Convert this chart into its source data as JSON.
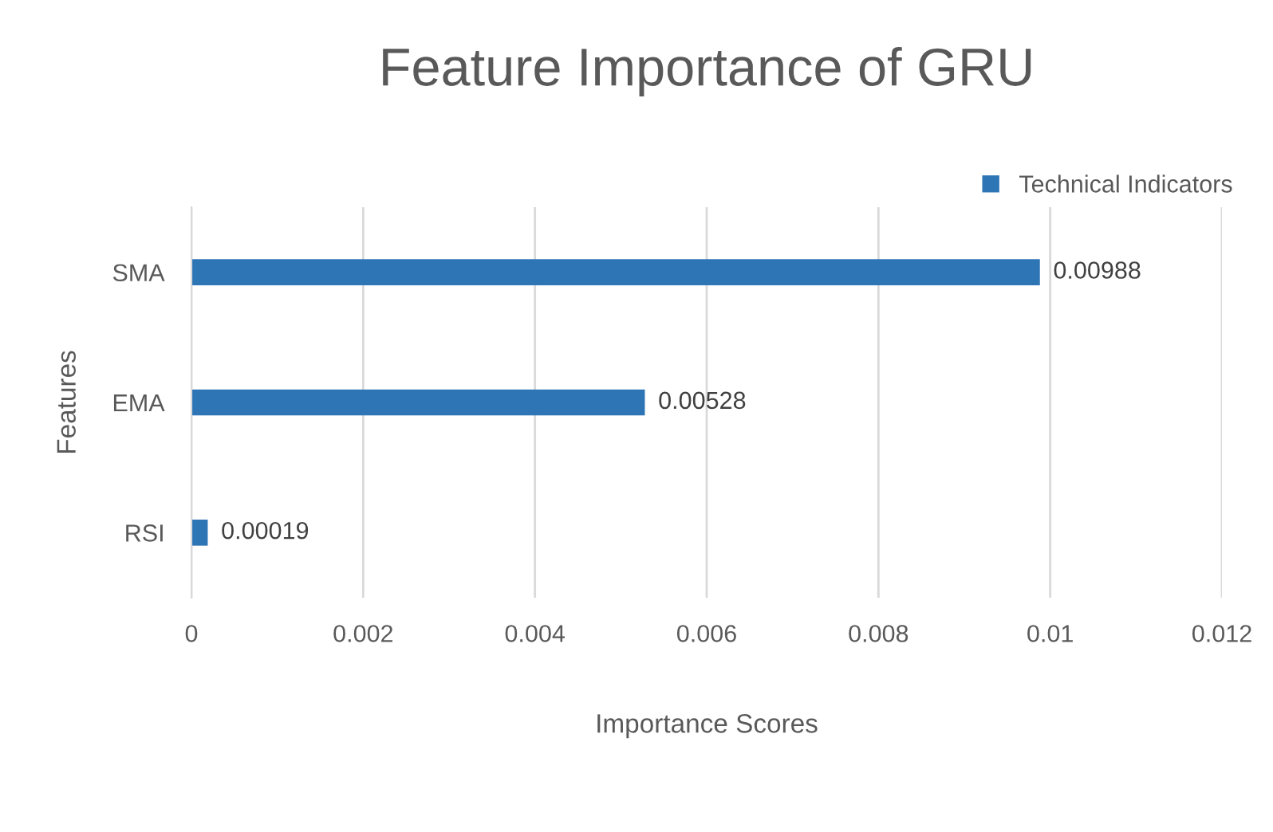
{
  "chart_data": {
    "type": "bar",
    "orientation": "horizontal",
    "title": "Feature Importance of GRU",
    "xlabel": "Importance Scores",
    "ylabel": "Features",
    "categories": [
      "SMA",
      "EMA",
      "RSI"
    ],
    "series": [
      {
        "name": "Technical Indicators",
        "color": "#2e75b6",
        "values": [
          0.00988,
          0.00528,
          0.00019
        ]
      }
    ],
    "xlim": [
      0,
      0.012
    ],
    "xticks": [
      0,
      0.002,
      0.004,
      0.006,
      0.008,
      0.01,
      0.012
    ],
    "data_labels": true,
    "grid": "x",
    "legend": "top right"
  }
}
